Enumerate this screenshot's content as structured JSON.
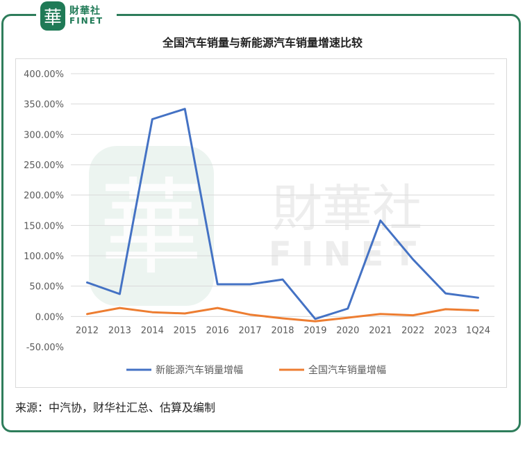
{
  "brand": {
    "badge": "華",
    "name_cn": "財華社",
    "name_en": "FINET"
  },
  "watermark": {
    "name_cn": "財華社",
    "name_en": "FINET",
    "badge": "華"
  },
  "source_note": "来源：中汽协，财华社汇总、估算及编制",
  "colors": {
    "frame": "#2e7d5b",
    "series_nev": "#4472c4",
    "series_total": "#ed7d31",
    "grid": "#d9d9d9"
  },
  "chart_data": {
    "type": "line",
    "title": "全国汽车销量与新能源汽车销量增速比较",
    "categories": [
      "2012",
      "2013",
      "2014",
      "2015",
      "2016",
      "2017",
      "2018",
      "2019",
      "2020",
      "2021",
      "2022",
      "2023",
      "1Q24"
    ],
    "y_ticks": [
      "400.00%",
      "350.00%",
      "300.00%",
      "250.00%",
      "200.00%",
      "150.00%",
      "100.00%",
      "50.00%",
      "0.00%",
      "-50.00%"
    ],
    "ylim": [
      -50,
      400
    ],
    "grid": true,
    "legend_position": "bottom",
    "series": [
      {
        "name": "新能源汽车销量增幅",
        "color": "#4472c4",
        "values": [
          56,
          37,
          325,
          342,
          53,
          53,
          61,
          -4,
          13,
          158,
          94,
          38,
          31
        ]
      },
      {
        "name": "全国汽车销量增幅",
        "color": "#ed7d31",
        "values": [
          4,
          14,
          7,
          5,
          14,
          3,
          -3,
          -8,
          -2,
          4,
          2,
          12,
          10
        ]
      }
    ]
  }
}
